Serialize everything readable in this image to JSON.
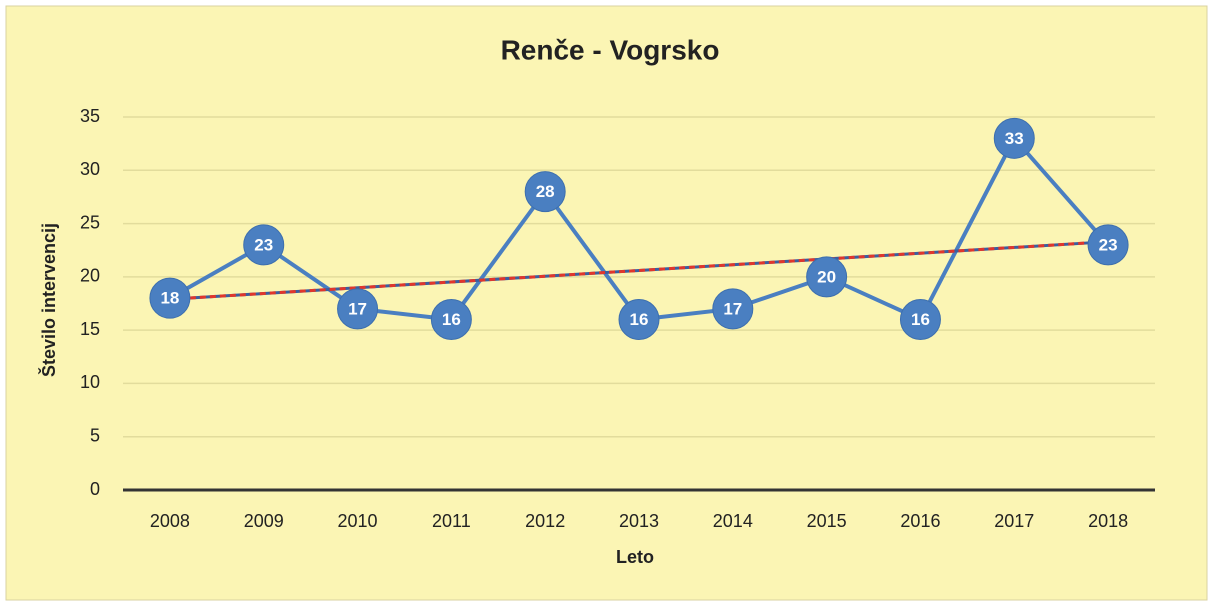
{
  "chart_data": {
    "type": "line",
    "title": "Renče - Vogrsko",
    "x_label": "Leto",
    "y_label": "Število intervencij",
    "categories": [
      "2008",
      "2009",
      "2010",
      "2011",
      "2012",
      "2013",
      "2014",
      "2015",
      "2016",
      "2017",
      "2018"
    ],
    "series": [
      {
        "name": "Število intervencij",
        "color": "#4a7fc1",
        "values": [
          18,
          23,
          17,
          16,
          28,
          16,
          17,
          20,
          16,
          33,
          23
        ]
      }
    ],
    "trendline": {
      "color": "#e0362c",
      "values": [
        17.9,
        23.3
      ]
    },
    "ylim": [
      0,
      35
    ],
    "yticks": [
      0,
      5,
      10,
      15,
      20,
      25,
      30,
      35
    ],
    "grid": true
  }
}
